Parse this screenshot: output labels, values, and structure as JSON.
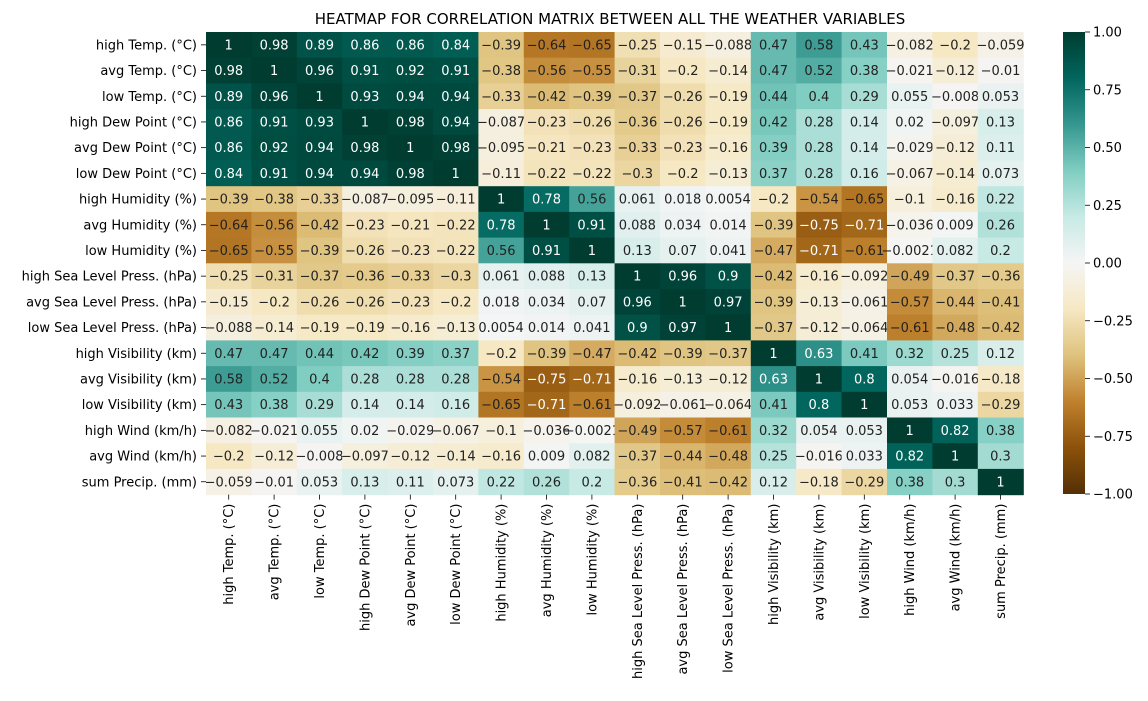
{
  "chart_data": {
    "type": "heatmap",
    "title": "HEATMAP FOR CORRELATION MATRIX BETWEEN ALL THE WEATHER VARIABLES",
    "xlabel": "",
    "ylabel": "",
    "labels": [
      "high Temp. (°C)",
      "avg Temp. (°C)",
      "low Temp. (°C)",
      "high Dew Point (°C)",
      "avg Dew Point (°C)",
      "low Dew Point (°C)",
      "high Humidity (%)",
      "avg Humidity (%)",
      "low Humidity (%)",
      "high Sea Level Press. (hPa)",
      "avg Sea Level Press. (hPa)",
      "low Sea Level Press. (hPa)",
      "high Visibility (km)",
      "avg Visibility (km)",
      "low Visibility (km)",
      "high Wind (km/h)",
      "avg Wind (km/h)",
      "sum Precip. (mm)"
    ],
    "values": [
      [
        1,
        0.98,
        0.89,
        0.86,
        0.86,
        0.84,
        -0.39,
        -0.64,
        -0.65,
        -0.25,
        -0.15,
        -0.088,
        0.47,
        0.58,
        0.43,
        -0.082,
        -0.2,
        -0.059
      ],
      [
        0.98,
        1,
        0.96,
        0.91,
        0.92,
        0.91,
        -0.38,
        -0.56,
        -0.55,
        -0.31,
        -0.2,
        -0.14,
        0.47,
        0.52,
        0.38,
        -0.021,
        -0.12,
        -0.01
      ],
      [
        0.89,
        0.96,
        1,
        0.93,
        0.94,
        0.94,
        -0.33,
        -0.42,
        -0.39,
        -0.37,
        -0.26,
        -0.19,
        0.44,
        0.4,
        0.29,
        0.055,
        -0.008,
        0.053
      ],
      [
        0.86,
        0.91,
        0.93,
        1,
        0.98,
        0.94,
        -0.087,
        -0.23,
        -0.26,
        -0.36,
        -0.26,
        -0.19,
        0.42,
        0.28,
        0.14,
        0.02,
        -0.097,
        0.13
      ],
      [
        0.86,
        0.92,
        0.94,
        0.98,
        1,
        0.98,
        -0.095,
        -0.21,
        -0.23,
        -0.33,
        -0.23,
        -0.16,
        0.39,
        0.28,
        0.14,
        -0.029,
        -0.12,
        0.11
      ],
      [
        0.84,
        0.91,
        0.94,
        0.94,
        0.98,
        1,
        -0.11,
        -0.22,
        -0.22,
        -0.3,
        -0.2,
        -0.13,
        0.37,
        0.28,
        0.16,
        -0.067,
        -0.14,
        0.073
      ],
      [
        -0.39,
        -0.38,
        -0.33,
        -0.087,
        -0.095,
        -0.11,
        1,
        0.78,
        0.56,
        0.061,
        0.018,
        0.0054,
        -0.2,
        -0.54,
        -0.65,
        -0.1,
        -0.16,
        0.22
      ],
      [
        -0.64,
        -0.56,
        -0.42,
        -0.23,
        -0.21,
        -0.22,
        0.78,
        1,
        0.91,
        0.088,
        0.034,
        0.014,
        -0.39,
        -0.75,
        -0.71,
        -0.036,
        0.009,
        0.26
      ],
      [
        -0.65,
        -0.55,
        -0.39,
        -0.26,
        -0.23,
        -0.22,
        0.56,
        0.91,
        1,
        0.13,
        0.07,
        0.041,
        -0.47,
        -0.71,
        -0.61,
        -0.0021,
        0.082,
        0.2
      ],
      [
        -0.25,
        -0.31,
        -0.37,
        -0.36,
        -0.33,
        -0.3,
        0.061,
        0.088,
        0.13,
        1,
        0.96,
        0.9,
        -0.42,
        -0.16,
        -0.092,
        -0.49,
        -0.37,
        -0.36
      ],
      [
        -0.15,
        -0.2,
        -0.26,
        -0.26,
        -0.23,
        -0.2,
        0.018,
        0.034,
        0.07,
        0.96,
        1,
        0.97,
        -0.39,
        -0.13,
        -0.061,
        -0.57,
        -0.44,
        -0.41
      ],
      [
        -0.088,
        -0.14,
        -0.19,
        -0.19,
        -0.16,
        -0.13,
        0.0054,
        0.014,
        0.041,
        0.9,
        0.97,
        1,
        -0.37,
        -0.12,
        -0.064,
        -0.61,
        -0.48,
        -0.42
      ],
      [
        0.47,
        0.47,
        0.44,
        0.42,
        0.39,
        0.37,
        -0.2,
        -0.39,
        -0.47,
        -0.42,
        -0.39,
        -0.37,
        1,
        0.63,
        0.41,
        0.32,
        0.25,
        0.12
      ],
      [
        0.58,
        0.52,
        0.4,
        0.28,
        0.28,
        0.28,
        -0.54,
        -0.75,
        -0.71,
        -0.16,
        -0.13,
        -0.12,
        0.63,
        1,
        0.8,
        0.054,
        -0.016,
        -0.18
      ],
      [
        0.43,
        0.38,
        0.29,
        0.14,
        0.14,
        0.16,
        -0.65,
        -0.71,
        -0.61,
        -0.092,
        -0.061,
        -0.064,
        0.41,
        0.8,
        1,
        0.053,
        0.033,
        -0.29
      ],
      [
        -0.082,
        -0.021,
        0.055,
        0.02,
        -0.029,
        -0.067,
        -0.1,
        -0.036,
        -0.0021,
        -0.49,
        -0.57,
        -0.61,
        0.32,
        0.054,
        0.053,
        1,
        0.82,
        0.38
      ],
      [
        -0.2,
        -0.12,
        -0.008,
        -0.097,
        -0.12,
        -0.14,
        -0.16,
        0.009,
        0.082,
        -0.37,
        -0.44,
        -0.48,
        0.25,
        -0.016,
        0.033,
        0.82,
        1,
        0.3
      ],
      [
        -0.059,
        -0.01,
        0.053,
        0.13,
        0.11,
        0.073,
        0.22,
        0.26,
        0.2,
        -0.36,
        -0.41,
        -0.42,
        0.12,
        -0.18,
        -0.29,
        0.38,
        0.3,
        1
      ]
    ],
    "colormap": "BrBG",
    "vmin": -1,
    "vmax": 1,
    "colorbar_ticks": [
      "1.00",
      "0.75",
      "0.50",
      "0.25",
      "0.00",
      "−0.25",
      "−0.50",
      "−0.75",
      "−1.00"
    ],
    "annotations": true,
    "grid": false,
    "legend": "colorbar-right"
  }
}
